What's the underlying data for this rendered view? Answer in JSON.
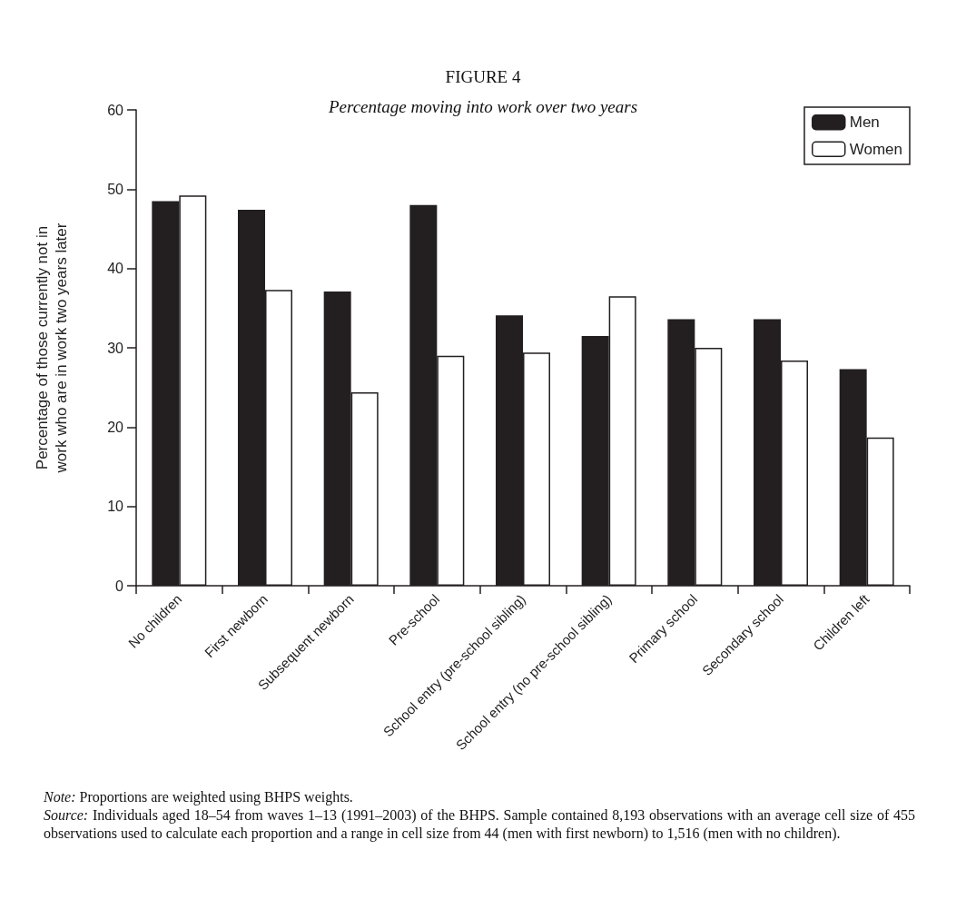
{
  "chart_data": {
    "type": "bar",
    "title": "FIGURE 4",
    "subtitle": "Percentage moving into work over two years",
    "ylabel": "Percentage of those currently not in work who are in work two years later",
    "categories": [
      "No children",
      "First newborn",
      "Subsequent newborn",
      "Pre-school",
      "School entry (pre-school sibling)",
      "School entry (no pre-school sibling)",
      "Primary school",
      "Secondary school",
      "Children left"
    ],
    "series": [
      {
        "name": "Men",
        "color": "#231f20",
        "values": [
          48.5,
          47.4,
          37.1,
          48.0,
          34.1,
          31.5,
          33.6,
          33.6,
          27.3
        ]
      },
      {
        "name": "Women",
        "color": "#ffffff",
        "values": [
          49.2,
          37.3,
          24.4,
          29.0,
          29.4,
          36.5,
          30.0,
          28.4,
          18.7
        ]
      }
    ],
    "ylim": [
      0,
      60
    ],
    "yticks": [
      0,
      10,
      20,
      30,
      40,
      50,
      60
    ],
    "grid": false,
    "legend": "top right",
    "annotations": [
      "Note: Proportions are weighted using BHPS weights.",
      "Source: Individuals aged 18–54 from waves 1–13 (1991–2003) of the BHPS. Sample contained 8,193 observations with an average cell size of 455 observations used to calculate each proportion and a range in cell size from 44 (men with first newborn) to 1,516 (men with no children)."
    ]
  }
}
